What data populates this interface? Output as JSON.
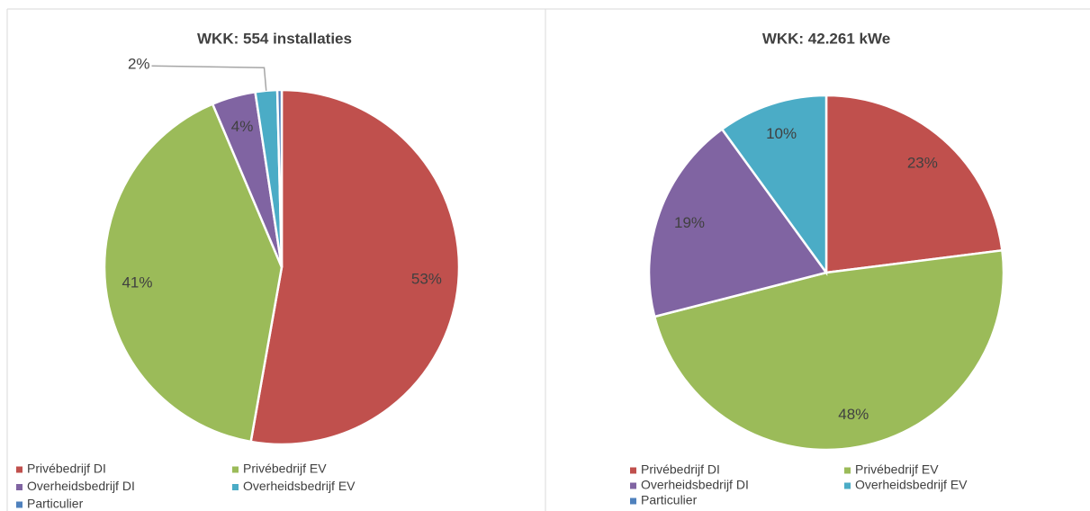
{
  "chart_data": [
    {
      "type": "pie",
      "title": "WKK: 554 installaties",
      "categories": [
        "Privébedrijf DI",
        "Privébedrijf EV",
        "Overheidsbedrijf DI",
        "Overheidsbedrijf EV",
        "Particulier"
      ],
      "values": [
        53,
        41,
        4,
        2,
        0.4
      ],
      "value_labels": [
        "53%",
        "41%",
        "4%",
        "2%",
        null
      ],
      "colors": [
        "#c0504d",
        "#9bbb59",
        "#8064a2",
        "#4bacc6",
        "#4f81bd"
      ],
      "legend": "bottom"
    },
    {
      "type": "pie",
      "title": "WKK: 42.261 kWe",
      "categories": [
        "Privébedrijf DI",
        "Privébedrijf EV",
        "Overheidsbedrijf DI",
        "Overheidsbedrijf EV",
        "Particulier"
      ],
      "values": [
        23,
        48,
        19,
        10,
        0
      ],
      "value_labels": [
        "23%",
        "48%",
        "19%",
        "10%",
        null
      ],
      "colors": [
        "#c0504d",
        "#9bbb59",
        "#8064a2",
        "#4bacc6",
        "#4f81bd"
      ],
      "legend": "bottom"
    }
  ]
}
